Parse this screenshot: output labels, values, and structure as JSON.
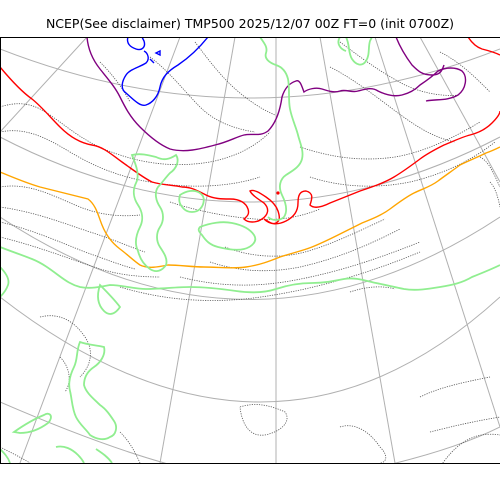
{
  "title": "NCEP(See disclaimer) TMP500 2025/12/07 00Z FT=0 (init 0700Z)",
  "colors": {
    "graticule": "#b0b0b0",
    "coastline": "#555555",
    "contour_coldest": "#0000ff",
    "contour_cold": "#800080",
    "contour_mid": "#ff0000",
    "contour_warm": "#ffa500",
    "contour_warmest": "#90ee90",
    "frame": "#000000"
  }
}
